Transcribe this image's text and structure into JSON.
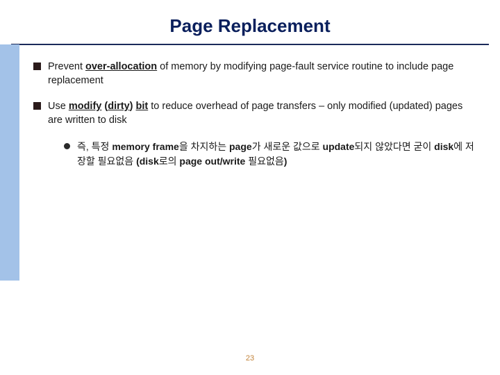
{
  "title": "Page Replacement",
  "sidebar_color": "#a3c2e8",
  "underline_color": "#1a2a5a",
  "title_color": "#0a1f5c",
  "bullets": {
    "b1_pre": "Prevent ",
    "b1_bold": "over-allocation",
    "b1_post": " of memory by modifying page-fault service routine to include page replacement",
    "b2_pre": "Use ",
    "b2_bold1": "modify",
    "b2_mid1": " (",
    "b2_bold2": "dirty",
    "b2_mid2": ") ",
    "b2_bold3": "bit",
    "b2_post": " to reduce overhead of page transfers – only modified (updated) pages are written to disk"
  },
  "sub": {
    "s1_p1": "즉, 특정 ",
    "s1_b1": "memory frame",
    "s1_p2": "을 차지하는 ",
    "s1_b2": "page",
    "s1_p3": "가 새로운 값으로 ",
    "s1_b3": "update",
    "s1_p4": "되지 않았다면 굳이 ",
    "s1_b4": "disk",
    "s1_p5": "에 저장할 필요없음 ",
    "s1_b5": "(disk",
    "s1_p6": "로의 ",
    "s1_b6": "page out/write ",
    "s1_p7": "필요없음",
    "s1_b7": ")"
  },
  "page_number": "23",
  "page_number_color": "#c2833a"
}
